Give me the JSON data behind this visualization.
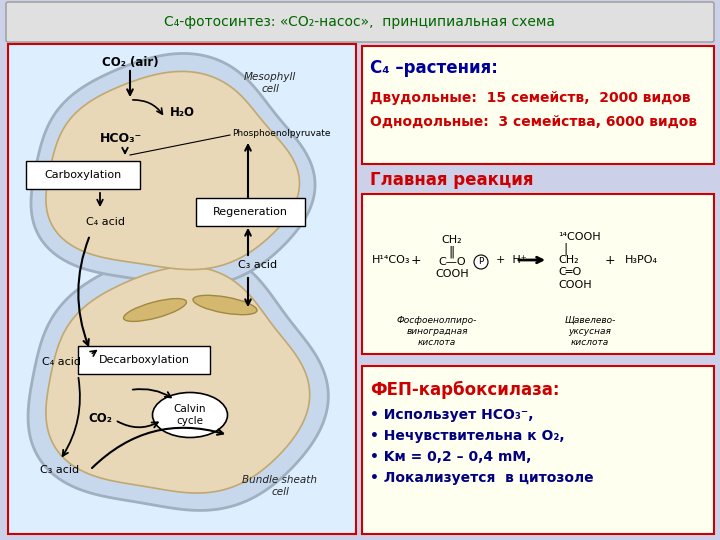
{
  "bg_color": "#ccd0e8",
  "title": "C₄-фотосинтез: «CO₂-насос»,  принципиальная схема",
  "title_color": "#006600",
  "title_bg": "#e0e0e0",
  "box1_title": "C₄ –растения:",
  "box1_line1": "Двудольные:  15 семейств,  2000 видов",
  "box1_line2": "Однодольные:  3 семейства, 6000 видов",
  "box1_bg": "#fffff0",
  "box1_border": "#cc0000",
  "glavnaya": "Главная реакция",
  "glavnaya_color": "#cc0000",
  "box2_bg": "#fffff0",
  "box2_border": "#cc0000",
  "box3_title": "ФЕП-карбоксилаза:",
  "box3_line1": "• Использует HCO₃⁻,",
  "box3_line2": "• Нечувствительна к O₂,",
  "box3_line3": "• Kм = 0,2 – 0,4 mM,",
  "box3_line4": "• Локализуется  в цитозоле",
  "box3_bg": "#fffff0",
  "box3_border": "#cc0000",
  "box3_title_color": "#cc0000",
  "box3_text_color": "#000080",
  "left_panel_bg": "#ddeeff",
  "left_panel_border": "#cc0000",
  "meso_color": "#c8d8ec",
  "meso_edge": "#a0b0c0",
  "bundle_color": "#c8d8ec",
  "bundle_edge": "#a0b0c0",
  "chloro_color": "#d4b870",
  "chloro_edge": "#a08840"
}
